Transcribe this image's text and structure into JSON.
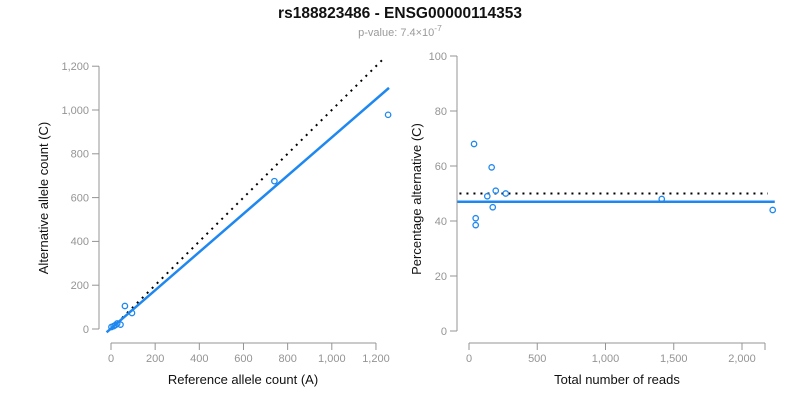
{
  "header": {
    "title": "rs188823486 - ENSG00000114353",
    "subtitle_prefix": "p-value: 7.4×10",
    "subtitle_exponent": "-7"
  },
  "colors": {
    "accent_blue": "#1E88F0",
    "dotted_black": "#000000",
    "axis_gray": "#949494",
    "tick_label_gray": "#949494",
    "title_black": "#111111",
    "subtitle_gray": "#9a9a9a"
  },
  "chart_data": [
    {
      "type": "scatter",
      "title": "",
      "xlabel": "Reference allele count (A)",
      "ylabel": "Alternative allele count (C)",
      "xlim": [
        0,
        1260
      ],
      "ylim": [
        0,
        1260
      ],
      "grid": false,
      "legend": null,
      "xtick_values": [
        0,
        200,
        400,
        600,
        800,
        1000,
        1200
      ],
      "xtick_labels": [
        "0",
        "200",
        "400",
        "600",
        "800",
        "1,000",
        "1,200"
      ],
      "ytick_values": [
        0,
        200,
        400,
        600,
        800,
        1000,
        1200
      ],
      "ytick_labels": [
        "0",
        "200",
        "400",
        "600",
        "800",
        "1,000",
        "1,200"
      ],
      "points": [
        [
          2,
          9
        ],
        [
          12,
          13
        ],
        [
          20,
          18
        ],
        [
          28,
          25
        ],
        [
          43,
          20
        ],
        [
          63,
          105
        ],
        [
          95,
          73
        ],
        [
          740,
          675
        ],
        [
          1255,
          978
        ]
      ],
      "lines": [
        {
          "name": "identity-line",
          "style": "dotted",
          "color": "#000000",
          "x1": 5,
          "y1": 5,
          "x2": 1243,
          "y2": 1243
        },
        {
          "name": "fit-line",
          "style": "solid",
          "color": "#1E88F0",
          "x1": -20,
          "y1": -15,
          "x2": 1259,
          "y2": 1101
        }
      ]
    },
    {
      "type": "scatter",
      "title": "",
      "xlabel": "Total number of reads",
      "ylabel": "Percentage alternative (C)",
      "xlim": [
        0,
        2242
      ],
      "ylim": [
        0,
        100
      ],
      "grid": false,
      "legend": null,
      "xtick_values": [
        0,
        500,
        1000,
        1500,
        2000
      ],
      "xtick_labels": [
        "0",
        "500",
        "1,000",
        "1,500",
        "2,000"
      ],
      "ytick_values": [
        0,
        20,
        40,
        60,
        80,
        100
      ],
      "ytick_labels": [
        "0",
        "20",
        "40",
        "60",
        "80",
        "100"
      ],
      "points": [
        [
          37,
          68
        ],
        [
          49,
          41
        ],
        [
          49,
          38.5
        ],
        [
          134,
          49
        ],
        [
          166,
          59.5
        ],
        [
          174,
          45
        ],
        [
          196,
          51
        ],
        [
          269,
          50
        ],
        [
          1412,
          48
        ],
        [
          2225,
          44
        ]
      ],
      "lines": [
        {
          "name": "expected-50pct-line",
          "style": "dotted",
          "color": "#000000",
          "x1": -70,
          "y1": 50,
          "x2": 2190,
          "y2": 50
        },
        {
          "name": "fit-line",
          "style": "solid",
          "color": "#1E88F0",
          "x1": -85,
          "y1": 47,
          "x2": 2240,
          "y2": 47
        }
      ]
    }
  ]
}
